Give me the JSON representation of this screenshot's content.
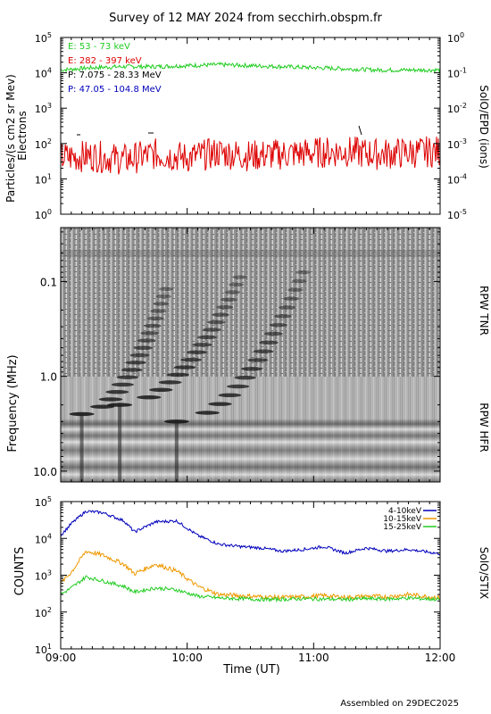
{
  "title": "Survey of 12 MAY 2024 from secchirh.obspm.fr",
  "footer": "Assembled on 29DEC2025",
  "colors": {
    "red": "#dd0000",
    "green": "#22cc22",
    "blue": "#0000bb",
    "orange": "#ee9900",
    "black": "#000000"
  },
  "chart_data": [
    {
      "type": "line",
      "panel": "SolO/EPD",
      "ylabel": "Particles/(s cm2 sr Mev)",
      "ylabel2": "Electrons",
      "right_label": "SolO/EPD (ions)",
      "yscale": "log",
      "ylim": [
        1,
        100000
      ],
      "y_ticks": [
        {
          "value": 1,
          "mant": "10",
          "exp": "0"
        },
        {
          "value": 10,
          "mant": "10",
          "exp": "1"
        },
        {
          "value": 100,
          "mant": "10",
          "exp": "2"
        },
        {
          "value": 1000,
          "mant": "10",
          "exp": "3"
        },
        {
          "value": 10000,
          "mant": "10",
          "exp": "4"
        },
        {
          "value": 100000,
          "mant": "10",
          "exp": "5"
        }
      ],
      "y2scale": "log",
      "y2lim": [
        1e-05,
        1
      ],
      "y2_ticks": [
        {
          "value": 1e-05,
          "mant": "10",
          "exp": "-5"
        },
        {
          "value": 0.0001,
          "mant": "10",
          "exp": "-4"
        },
        {
          "value": 0.001,
          "mant": "10",
          "exp": "-3"
        },
        {
          "value": 0.01,
          "mant": "10",
          "exp": "-2"
        },
        {
          "value": 0.1,
          "mant": "10",
          "exp": "-1"
        },
        {
          "value": 1,
          "mant": "10",
          "exp": "0"
        }
      ],
      "xlim": [
        "09:00",
        "12:00"
      ],
      "legend": [
        {
          "label": "E: 53 - 73 keV",
          "color": "#22cc22"
        },
        {
          "label": "E: 282 - 397 keV",
          "color": "#dd0000"
        },
        {
          "label": "P: 7.075 - 28.33 MeV",
          "color": "#000000"
        },
        {
          "label": "P: 47.05 - 104.8 MeV",
          "color": "#0000bb"
        }
      ],
      "series": [
        {
          "name": "E: 53 - 73 keV",
          "color": "#22cc22",
          "x": [
            "09:00",
            "09:15",
            "09:30",
            "09:45",
            "10:00",
            "10:15",
            "10:30",
            "10:45",
            "11:00",
            "11:15",
            "11:30",
            "11:45",
            "12:00"
          ],
          "values": [
            12000,
            14000,
            15000,
            15000,
            16000,
            17000,
            16000,
            15000,
            14000,
            13000,
            12000,
            12000,
            12000
          ]
        },
        {
          "name": "E: 282 - 397 keV",
          "color": "#dd0000",
          "x": [
            "09:00",
            "09:15",
            "09:30",
            "09:45",
            "10:00",
            "10:15",
            "10:30",
            "10:45",
            "11:00",
            "11:15",
            "11:30",
            "11:45",
            "12:00"
          ],
          "values": [
            40,
            45,
            35,
            50,
            40,
            55,
            45,
            50,
            55,
            60,
            50,
            55,
            60
          ]
        }
      ]
    },
    {
      "type": "heatmap",
      "panel": "RPW TNR / RPW HFR",
      "ylabel": "Frequency (MHz)",
      "right_labels": [
        "RPW TNR",
        "RPW HFR"
      ],
      "yscale": "log",
      "ylim": [
        13.0,
        0.027
      ],
      "y_ticks": [
        {
          "value": 0.1,
          "label": "0.1"
        },
        {
          "value": 1.0,
          "label": "1.0"
        },
        {
          "value": 10.0,
          "label": "10.0"
        }
      ],
      "xlim": [
        "09:00",
        "12:00"
      ],
      "bursts": [
        {
          "start": "09:10",
          "end": "09:50",
          "f_start_mhz": 2.5,
          "f_end_mhz": 0.12
        },
        {
          "start": "09:28",
          "end": "10:25",
          "f_start_mhz": 2.0,
          "f_end_mhz": 0.09
        },
        {
          "start": "09:55",
          "end": "10:55",
          "f_start_mhz": 3.0,
          "f_end_mhz": 0.08
        }
      ]
    },
    {
      "type": "line",
      "panel": "SolO/STIX",
      "ylabel": "COUNTS",
      "right_label": "SolO/STIX",
      "yscale": "log",
      "ylim": [
        10,
        100000
      ],
      "y_ticks": [
        {
          "value": 10,
          "mant": "10",
          "exp": "1"
        },
        {
          "value": 100,
          "mant": "10",
          "exp": "2"
        },
        {
          "value": 1000,
          "mant": "10",
          "exp": "3"
        },
        {
          "value": 10000,
          "mant": "10",
          "exp": "4"
        },
        {
          "value": 100000,
          "mant": "10",
          "exp": "5"
        }
      ],
      "xlabel": "Time (UT)",
      "xlim": [
        "09:00",
        "12:00"
      ],
      "x_ticks": [
        "09:00",
        "10:00",
        "11:00",
        "12:00"
      ],
      "legend": [
        {
          "label": "4-10keV",
          "color": "#0000bb"
        },
        {
          "label": "10-15keV",
          "color": "#ee9900"
        },
        {
          "label": "15-25keV",
          "color": "#22cc22"
        }
      ],
      "series": [
        {
          "name": "4-10keV",
          "color": "#0000bb",
          "x": [
            "09:00",
            "09:05",
            "09:12",
            "09:20",
            "09:30",
            "09:35",
            "09:45",
            "09:55",
            "10:05",
            "10:15",
            "10:25",
            "10:35",
            "10:45",
            "10:55",
            "11:05",
            "11:15",
            "11:25",
            "11:35",
            "11:45",
            "11:55",
            "12:00"
          ],
          "values": [
            12000,
            25000,
            55000,
            50000,
            30000,
            15000,
            28000,
            30000,
            12000,
            7000,
            6000,
            5500,
            4500,
            5000,
            6000,
            4000,
            5500,
            4500,
            5000,
            4200,
            3800
          ]
        },
        {
          "name": "10-15keV",
          "color": "#ee9900",
          "x": [
            "09:00",
            "09:05",
            "09:12",
            "09:20",
            "09:30",
            "09:35",
            "09:45",
            "09:55",
            "10:05",
            "10:15",
            "10:25",
            "10:35",
            "10:45",
            "10:55",
            "11:05",
            "11:15",
            "11:25",
            "11:35",
            "11:45",
            "11:55",
            "12:00"
          ],
          "values": [
            600,
            1200,
            4500,
            3500,
            2000,
            1100,
            2000,
            1300,
            500,
            300,
            280,
            260,
            250,
            260,
            280,
            250,
            270,
            260,
            300,
            260,
            250
          ]
        },
        {
          "name": "15-25keV",
          "color": "#22cc22",
          "x": [
            "09:00",
            "09:05",
            "09:12",
            "09:20",
            "09:30",
            "09:35",
            "09:45",
            "09:55",
            "10:05",
            "10:15",
            "10:25",
            "10:35",
            "10:45",
            "10:55",
            "11:05",
            "11:15",
            "11:25",
            "11:35",
            "11:45",
            "11:55",
            "12:00"
          ],
          "values": [
            300,
            450,
            900,
            700,
            500,
            350,
            450,
            400,
            270,
            240,
            230,
            220,
            220,
            230,
            225,
            220,
            230,
            225,
            240,
            225,
            220
          ]
        }
      ]
    }
  ]
}
